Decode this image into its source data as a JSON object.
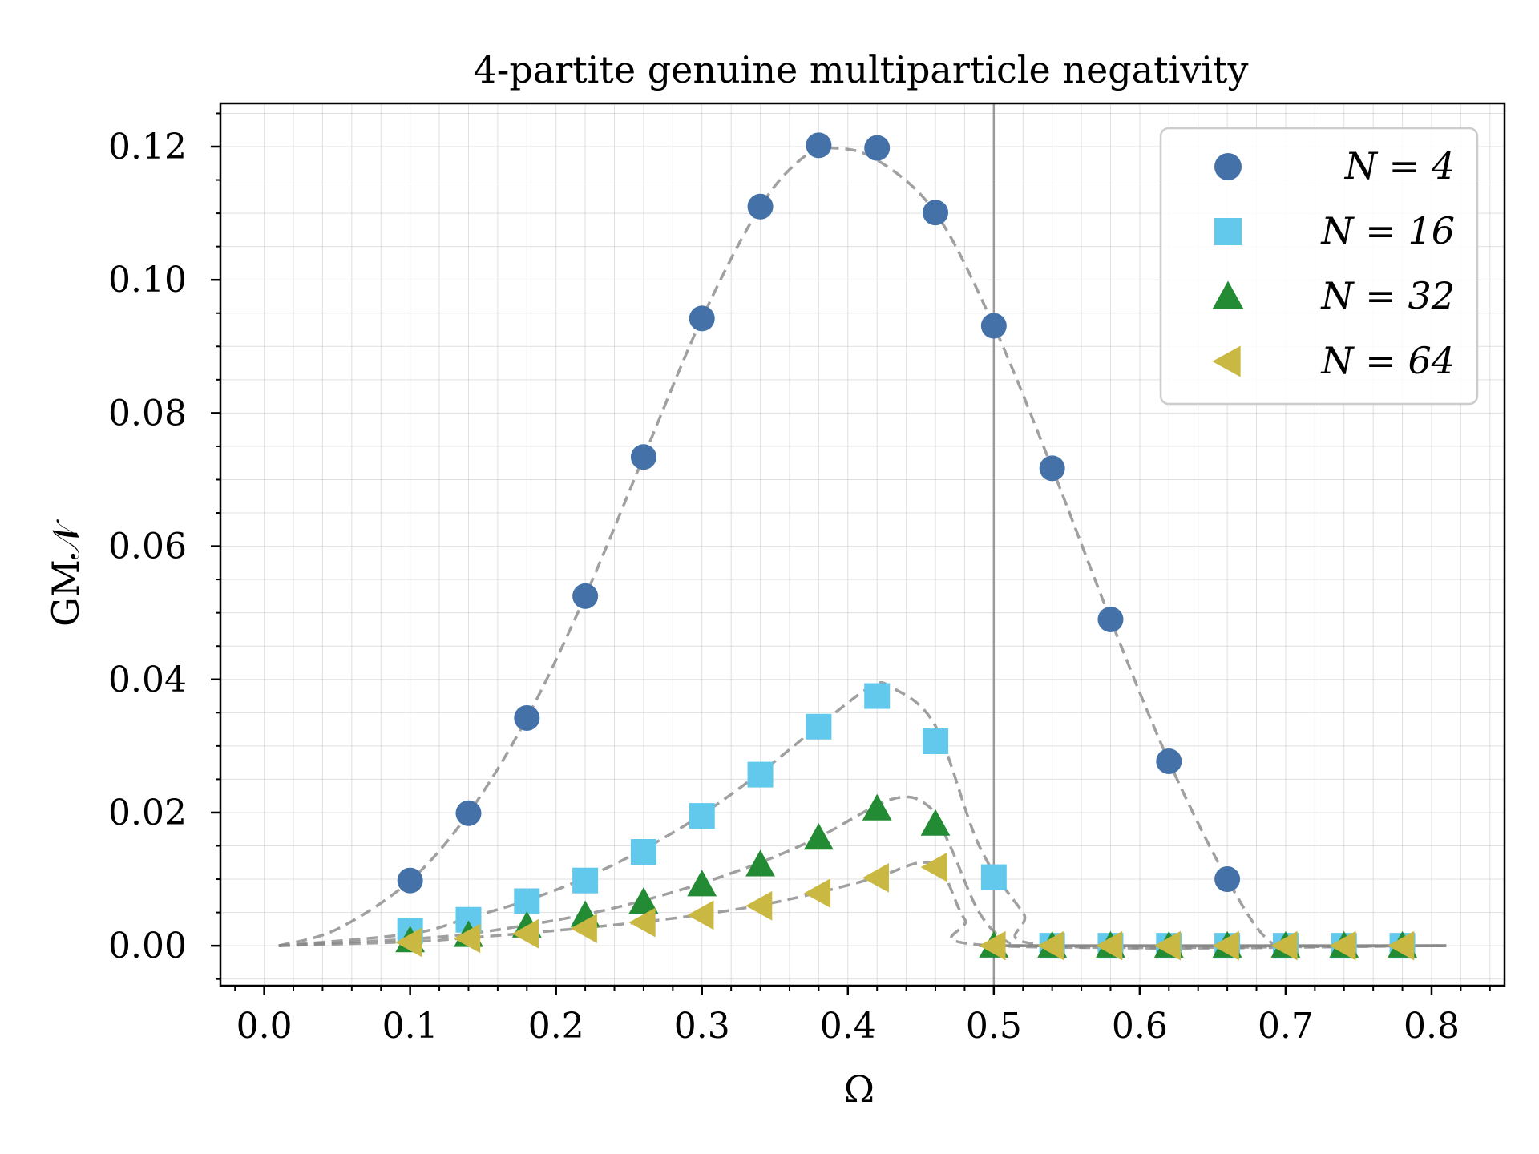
{
  "chart_data": {
    "type": "scatter",
    "title": "4-partite genuine multiparticle negativity",
    "xlabel": "Ω",
    "ylabel": "GM𝒩",
    "xlim": [
      -0.03,
      0.85
    ],
    "ylim": [
      -0.006,
      0.1265
    ],
    "xticks": [
      0.0,
      0.1,
      0.2,
      0.3,
      0.4,
      0.5,
      0.6,
      0.7,
      0.8
    ],
    "xtick_labels": [
      "0.0",
      "0.1",
      "0.2",
      "0.3",
      "0.4",
      "0.5",
      "0.6",
      "0.7",
      "0.8"
    ],
    "yticks": [
      0.0,
      0.02,
      0.04,
      0.06,
      0.08,
      0.1,
      0.12
    ],
    "ytick_labels": [
      "0.00",
      "0.02",
      "0.04",
      "0.06",
      "0.08",
      "0.10",
      "0.12"
    ],
    "grid": true,
    "vline_x": 0.5,
    "legend_position": "top-right",
    "series": [
      {
        "name": "N = 4",
        "label": "N = 4",
        "marker": "circle",
        "color": "#4472a8",
        "x": [
          0.1,
          0.14,
          0.18,
          0.22,
          0.26,
          0.3,
          0.34,
          0.38,
          0.42,
          0.46,
          0.5,
          0.54,
          0.58,
          0.62,
          0.66,
          0.7,
          0.74,
          0.78
        ],
        "y": [
          0.0098,
          0.0199,
          0.0342,
          0.0525,
          0.0734,
          0.0942,
          0.111,
          0.1202,
          0.1198,
          0.1101,
          0.0931,
          0.0717,
          0.049,
          0.0277,
          0.01,
          0.0,
          0.0,
          0.0
        ],
        "fit_x": [
          0.01,
          0.05,
          0.1,
          0.14,
          0.18,
          0.22,
          0.26,
          0.3,
          0.34,
          0.37,
          0.39,
          0.42,
          0.46,
          0.5,
          0.54,
          0.58,
          0.62,
          0.66,
          0.69,
          0.72,
          0.81
        ],
        "fit_y": [
          0.0,
          0.0025,
          0.0098,
          0.0199,
          0.0342,
          0.0525,
          0.0734,
          0.0942,
          0.111,
          0.1185,
          0.1198,
          0.118,
          0.1101,
          0.0931,
          0.0717,
          0.049,
          0.0277,
          0.01,
          0.0005,
          0.0,
          0.0
        ]
      },
      {
        "name": "N = 16",
        "label": "N = 16",
        "marker": "square",
        "color": "#62c9ec",
        "x": [
          0.1,
          0.14,
          0.18,
          0.22,
          0.26,
          0.3,
          0.34,
          0.38,
          0.42,
          0.46,
          0.5,
          0.54,
          0.58,
          0.62,
          0.66,
          0.7,
          0.74,
          0.78
        ],
        "y": [
          0.0022,
          0.0039,
          0.0067,
          0.0098,
          0.0141,
          0.0195,
          0.0257,
          0.0329,
          0.0375,
          0.0307,
          0.0103,
          0.0,
          0.0,
          0.0,
          0.0,
          0.0,
          0.0,
          0.0
        ],
        "fit_x": [
          0.01,
          0.1,
          0.14,
          0.18,
          0.22,
          0.26,
          0.3,
          0.34,
          0.38,
          0.415,
          0.43,
          0.46,
          0.49,
          0.52,
          0.54,
          0.81
        ],
        "fit_y": [
          0.0,
          0.0018,
          0.0042,
          0.0068,
          0.0102,
          0.0145,
          0.0197,
          0.026,
          0.033,
          0.0388,
          0.0388,
          0.033,
          0.015,
          0.005,
          0.0,
          0.0
        ]
      },
      {
        "name": "N = 32",
        "label": "N = 32",
        "marker": "triangle-up",
        "color": "#238b33",
        "x": [
          0.1,
          0.14,
          0.18,
          0.22,
          0.26,
          0.3,
          0.34,
          0.38,
          0.42,
          0.46,
          0.5,
          0.54,
          0.58,
          0.62,
          0.66,
          0.7,
          0.74,
          0.78
        ],
        "y": [
          0.0008,
          0.0016,
          0.003,
          0.0046,
          0.0066,
          0.0092,
          0.0122,
          0.0162,
          0.0206,
          0.0183,
          0.0,
          0.0,
          0.0,
          0.0,
          0.0,
          0.0,
          0.0,
          0.0
        ],
        "fit_x": [
          0.01,
          0.1,
          0.14,
          0.18,
          0.22,
          0.26,
          0.3,
          0.34,
          0.38,
          0.43,
          0.455,
          0.47,
          0.49,
          0.51,
          0.53,
          0.81
        ],
        "fit_y": [
          0.0,
          0.001,
          0.0018,
          0.0031,
          0.0047,
          0.0068,
          0.0094,
          0.0125,
          0.0163,
          0.022,
          0.021,
          0.015,
          0.005,
          0.0005,
          0.0,
          0.0
        ]
      },
      {
        "name": "N = 64",
        "label": "N = 64",
        "marker": "triangle-left",
        "color": "#c9b841",
        "x": [
          0.1,
          0.14,
          0.18,
          0.22,
          0.26,
          0.3,
          0.34,
          0.38,
          0.42,
          0.46,
          0.5,
          0.54,
          0.58,
          0.62,
          0.66,
          0.7,
          0.74,
          0.78
        ],
        "y": [
          0.0005,
          0.0011,
          0.0018,
          0.0026,
          0.0035,
          0.0046,
          0.006,
          0.0079,
          0.0102,
          0.0118,
          0.0,
          0.0,
          0.0,
          0.0,
          0.0,
          0.0,
          0.0,
          0.0
        ],
        "fit_x": [
          0.01,
          0.1,
          0.14,
          0.18,
          0.22,
          0.26,
          0.3,
          0.34,
          0.38,
          0.42,
          0.45,
          0.465,
          0.48,
          0.5,
          0.81
        ],
        "fit_y": [
          0.0,
          0.0006,
          0.0012,
          0.0019,
          0.0027,
          0.0036,
          0.0047,
          0.0061,
          0.008,
          0.0103,
          0.0125,
          0.011,
          0.004,
          0.0,
          0.0
        ]
      }
    ]
  }
}
